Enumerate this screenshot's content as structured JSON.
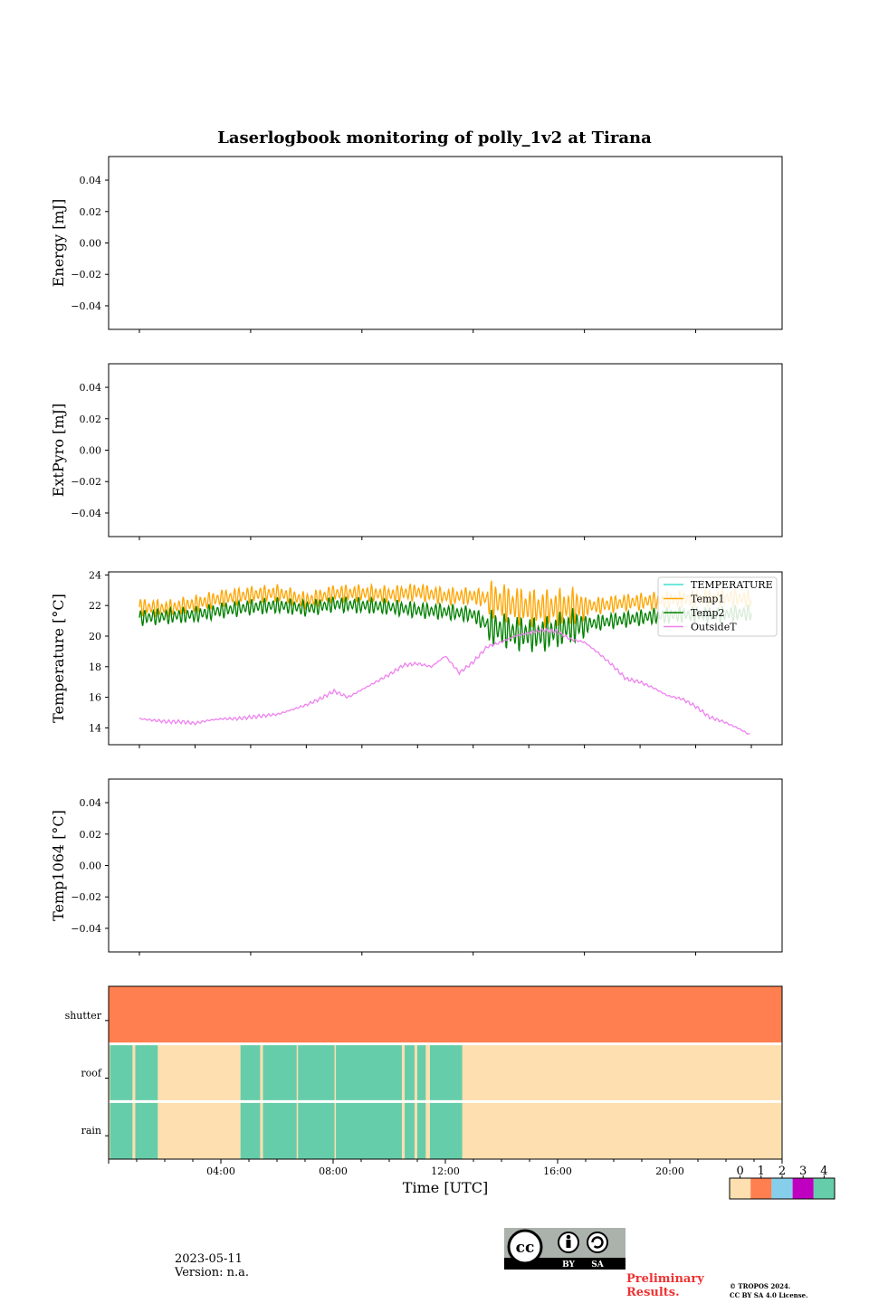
{
  "title": "Laserlogbook monitoring of polly_1v2 at Tirana",
  "colors": {
    "temperature": "#40e0d0",
    "temp1": "#ffa500",
    "temp2": "#008000",
    "outsideT": "#ee82ee",
    "status": [
      "#fddfb0",
      "#ff7f50",
      "#87ceeb",
      "#c000c0",
      "#66cdaa"
    ]
  },
  "chart_data": [
    {
      "type": "line",
      "ylabel": "Energy [mJ]",
      "yticks": [
        "0.04",
        "0.02",
        "0.00",
        "−0.02",
        "−0.04"
      ],
      "ylim": [
        -0.055,
        0.055
      ],
      "series": []
    },
    {
      "type": "line",
      "ylabel": "ExtPyro [mJ]",
      "yticks": [
        "0.04",
        "0.02",
        "0.00",
        "−0.02",
        "−0.04"
      ],
      "ylim": [
        -0.055,
        0.055
      ],
      "series": []
    },
    {
      "type": "line",
      "ylabel": "Temperature [°C]",
      "yticks": [
        "24",
        "22",
        "20",
        "18",
        "16",
        "14"
      ],
      "ylim": [
        12.9,
        24.2
      ],
      "legend_position": "top-right",
      "series": [
        {
          "name": "TEMPERATURE",
          "x": [],
          "y": []
        },
        {
          "name": "Temp1",
          "x": [
            0.0,
            1.0,
            2.0,
            3.0,
            4.0,
            5.0,
            6.0,
            7.0,
            8.0,
            9.0,
            10.0,
            11.0,
            12.0,
            12.6,
            13.5,
            14.5,
            15.5,
            16.5,
            17.5,
            18.5,
            19.5,
            20.5,
            21.5,
            22.0
          ],
          "y": [
            21.9,
            21.8,
            22.1,
            22.5,
            22.7,
            22.8,
            22.3,
            22.8,
            22.8,
            22.7,
            22.9,
            22.6,
            22.6,
            22.4,
            22.0,
            21.8,
            21.9,
            22.0,
            22.2,
            22.3,
            22.4,
            22.5,
            22.5,
            22.4
          ]
        },
        {
          "name": "Temp2",
          "x": [
            0.0,
            1.0,
            2.0,
            3.0,
            4.0,
            5.0,
            6.0,
            7.0,
            8.0,
            9.0,
            10.0,
            11.0,
            12.0,
            12.6,
            13.5,
            14.5,
            15.5,
            16.5,
            17.5,
            18.5,
            19.5,
            20.5,
            21.5,
            22.0
          ],
          "y": [
            21.2,
            21.3,
            21.4,
            21.7,
            21.9,
            22.0,
            21.8,
            22.1,
            22.0,
            21.9,
            21.7,
            21.6,
            21.4,
            20.6,
            20.2,
            20.1,
            20.6,
            20.9,
            21.1,
            21.3,
            21.4,
            21.4,
            21.5,
            21.5
          ]
        },
        {
          "name": "OutsideT",
          "x": [
            0.0,
            0.5,
            1.0,
            1.5,
            2.0,
            2.5,
            3.0,
            3.5,
            4.0,
            4.5,
            5.0,
            5.5,
            6.0,
            6.5,
            7.0,
            7.5,
            8.0,
            8.5,
            9.0,
            9.5,
            10.0,
            10.5,
            11.0,
            11.5,
            12.0,
            12.5,
            13.0,
            13.5,
            14.0,
            14.5,
            15.0,
            15.5,
            16.0,
            16.5,
            17.0,
            17.5,
            18.0,
            18.5,
            19.0,
            19.5,
            20.0,
            20.5,
            21.0,
            21.5,
            22.0
          ],
          "y": [
            14.6,
            14.5,
            14.4,
            14.4,
            14.3,
            14.5,
            14.6,
            14.6,
            14.7,
            14.8,
            14.9,
            15.2,
            15.5,
            15.9,
            16.4,
            16.0,
            16.5,
            17.0,
            17.5,
            18.1,
            18.2,
            18.0,
            18.7,
            17.6,
            18.3,
            19.3,
            19.6,
            20.0,
            20.2,
            20.4,
            20.3,
            19.8,
            19.6,
            18.9,
            18.1,
            17.2,
            17.0,
            16.6,
            16.1,
            15.9,
            15.4,
            14.7,
            14.4,
            14.0,
            13.5
          ]
        }
      ]
    },
    {
      "type": "line",
      "ylabel": "Temp1064 [°C]",
      "yticks": [
        "0.04",
        "0.02",
        "0.00",
        "−0.02",
        "−0.04"
      ],
      "ylim": [
        -0.055,
        0.055
      ],
      "series": []
    },
    {
      "type": "heatmap",
      "rows": [
        "shutter",
        "roof",
        "rain"
      ],
      "xlabel": "Time [UTC]",
      "xticks": [
        "04:00",
        "08:00",
        "12:00",
        "16:00",
        "20:00"
      ],
      "xlim_hours": [
        0,
        24
      ],
      "colorbar_ticks": [
        "0",
        "1",
        "2",
        "3",
        "4"
      ],
      "shutter_status": 1,
      "roof_rain_status4_intervals_hours": [
        [
          0.05,
          0.85
        ],
        [
          0.95,
          1.5
        ],
        [
          1.5,
          1.75
        ],
        [
          4.7,
          5.4
        ],
        [
          5.5,
          6.7
        ],
        [
          6.75,
          8.05
        ],
        [
          8.1,
          10.45
        ],
        [
          10.55,
          10.9
        ],
        [
          11.0,
          11.3
        ],
        [
          11.45,
          12.6
        ]
      ]
    }
  ],
  "footer": {
    "date": "2023-05-11",
    "version": "Version: n.a.",
    "preliminary": "Preliminary Results.",
    "copyright_line1": "© TROPOS 2024.",
    "copyright_line2": "CC BY SA 4.0 License.",
    "cc_by": "BY",
    "cc_sa": "SA"
  }
}
